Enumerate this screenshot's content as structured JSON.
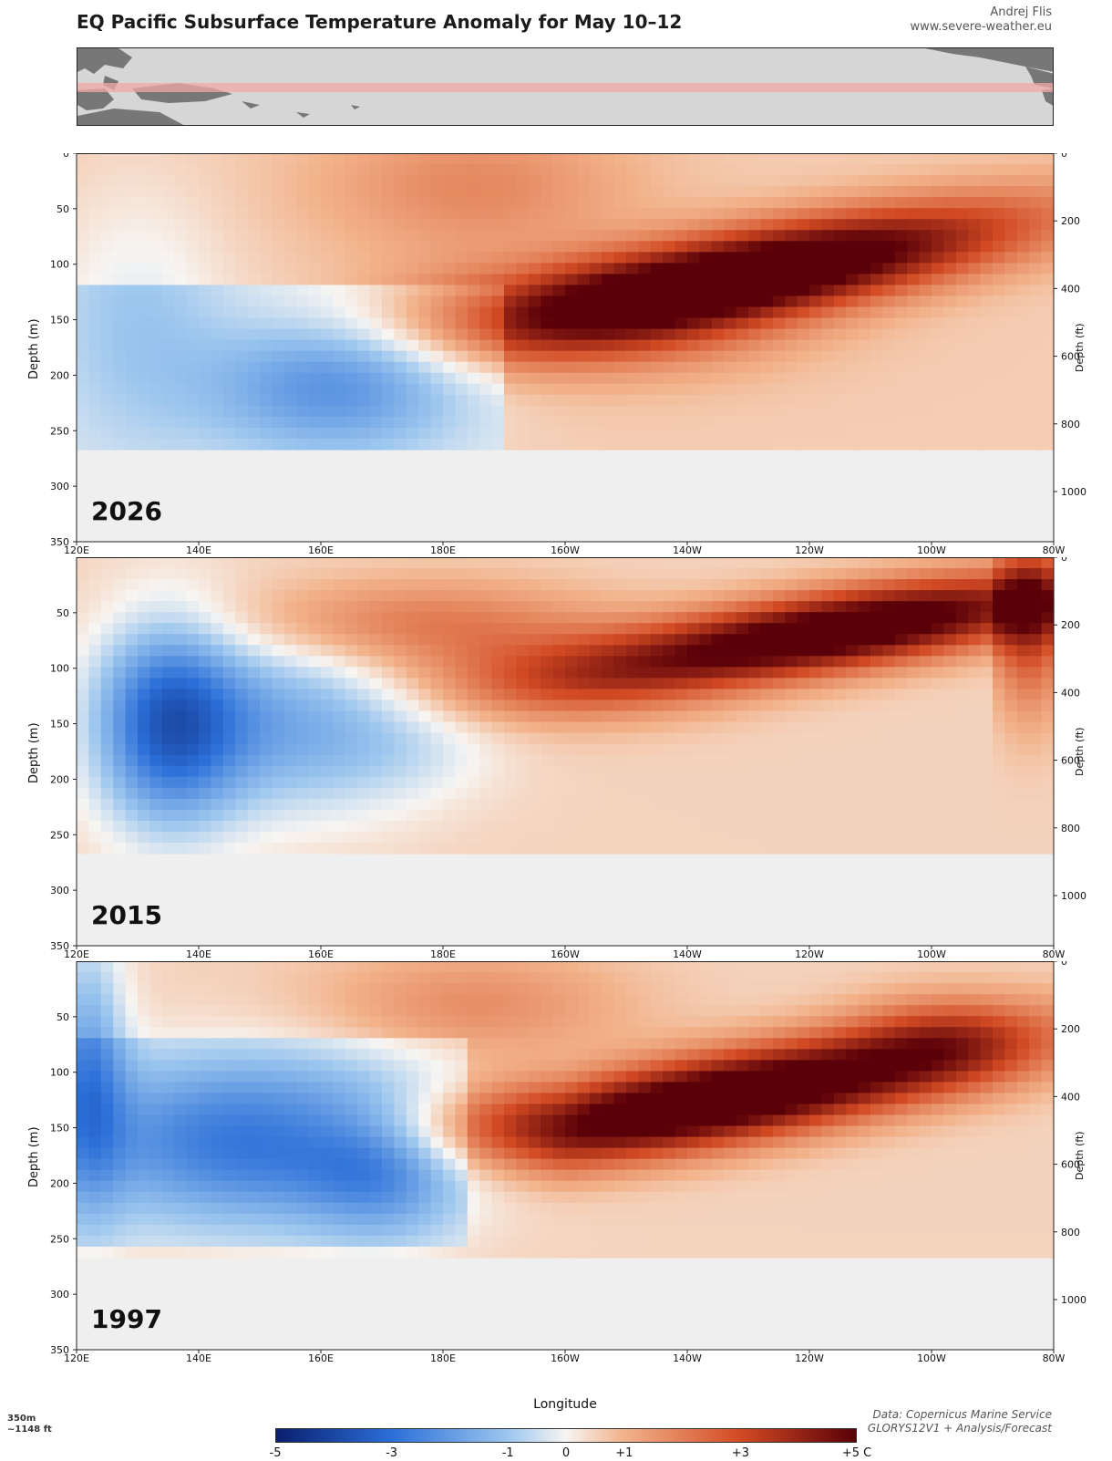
{
  "title": "EQ Pacific Subsurface Temperature Anomaly for May 10–12",
  "credit": {
    "author": "Andrej Flis",
    "website": "www.severe-weather.eu"
  },
  "chart_data": {
    "type": "heatmap",
    "xlabel": "Longitude",
    "ylabel_left": "Depth (m)",
    "ylabel_right": "Depth (ft)",
    "x_ticks": [
      "120E",
      "140E",
      "160E",
      "180E",
      "160W",
      "140W",
      "120W",
      "100W",
      "80W"
    ],
    "y_ticks_m": [
      "0",
      "50",
      "100",
      "150",
      "200",
      "250",
      "300",
      "350"
    ],
    "y_ticks_ft": [
      "0",
      "200",
      "400",
      "600",
      "800",
      "1000"
    ],
    "ylim_m": [
      0,
      350
    ],
    "xlim": [
      "120E",
      "80W"
    ],
    "colorbar": {
      "ticks": [
        "-5",
        "-3",
        "-1",
        "0",
        "+1",
        "+3",
        "+5 C"
      ],
      "range": [
        -5,
        5
      ],
      "colors": [
        "#0a1f6e",
        "#2b6fd8",
        "#9cc6ee",
        "#f7f5f2",
        "#f2b28a",
        "#d24a23",
        "#5a0008"
      ]
    },
    "panels": [
      {
        "year": "2026",
        "description_values": {
          "warm_core_anomaly_C": 5,
          "warm_core_longitude": "140W–120W",
          "warm_core_depth_m": [
            60,
            150
          ],
          "cool_anomaly_C": -1.5,
          "cool_region_longitude": "150E–175E",
          "cool_region_depth_m": [
            150,
            260
          ]
        }
      },
      {
        "year": "2015",
        "description_values": {
          "warm_core_anomaly_C": 5,
          "warm_core_longitude": "125W–95W",
          "warm_core_depth_m": [
            30,
            110
          ],
          "cool_anomaly_C": -3,
          "cool_region_longitude": "130E–140E",
          "cool_region_depth_m": [
            80,
            260
          ]
        }
      },
      {
        "year": "1997",
        "description_values": {
          "warm_core_anomaly_C": 5,
          "warm_core_longitude": "155W–115W",
          "warm_core_depth_m": [
            60,
            150
          ],
          "cool_anomaly_C": -3,
          "cool_region_longitude": "120E–175E",
          "cool_region_depth_m": [
            50,
            220
          ]
        }
      }
    ]
  },
  "footnote": {
    "line1": "350m",
    "line2": "~1148 ft"
  },
  "data_source": {
    "line1": "Data: Copernicus Marine Service",
    "line2": "GLORYS12V1 + Analysis/Forecast"
  }
}
